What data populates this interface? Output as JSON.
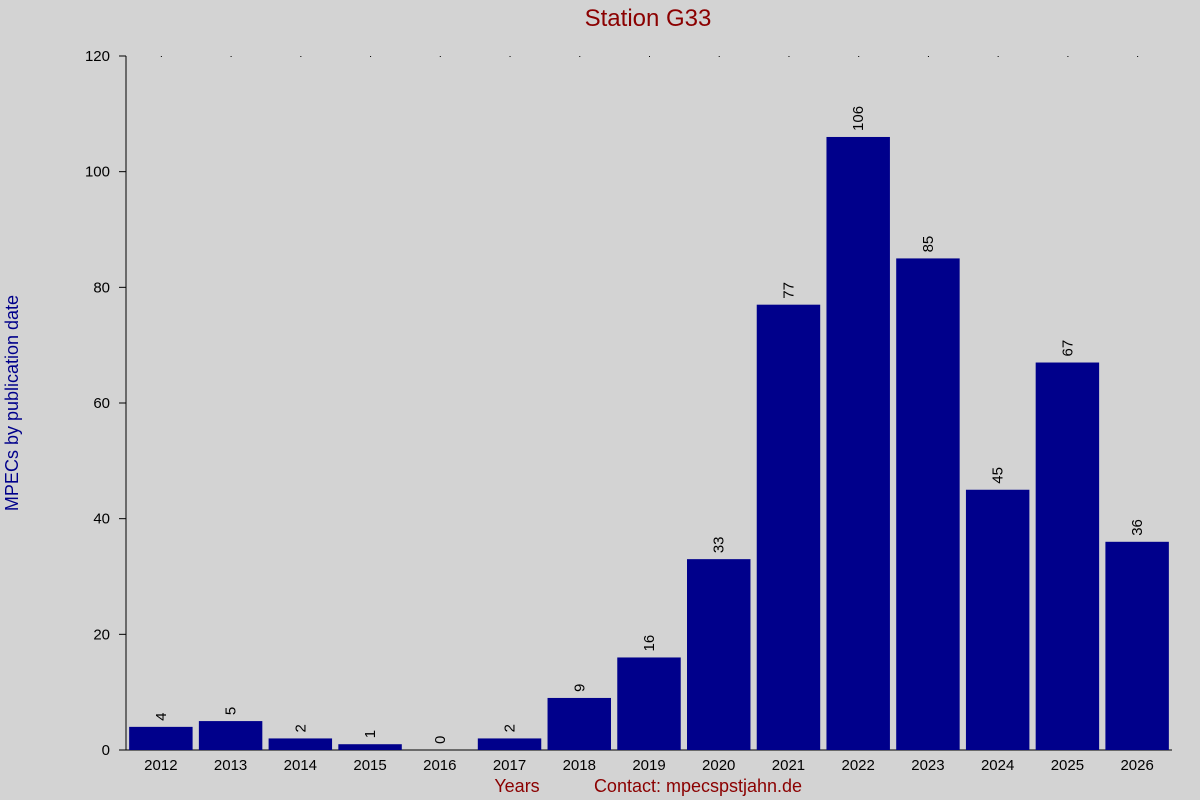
{
  "chart_data": {
    "type": "bar",
    "title": "Station G33",
    "ylabel": "MPECs by publication date",
    "xlabel": "Years",
    "contact": "Contact: mpecspstjahn.de",
    "categories": [
      "2012",
      "2013",
      "2014",
      "2015",
      "2016",
      "2017",
      "2018",
      "2019",
      "2020",
      "2021",
      "2022",
      "2023",
      "2024",
      "2025",
      "2026"
    ],
    "values": [
      4,
      5,
      2,
      1,
      0,
      2,
      9,
      16,
      33,
      77,
      106,
      85,
      45,
      67,
      36
    ],
    "ylim": [
      0,
      120
    ],
    "yticks": [
      "0",
      "20",
      "40",
      "60",
      "80",
      "100",
      "120"
    ],
    "data_labels": "rotated-vertical",
    "grid": false,
    "legend": "none",
    "colors": {
      "background": "#d3d3d3",
      "bar": "#00008b",
      "title": "#8b0000",
      "ylabel": "#00008b",
      "xlabel": "#8b0000",
      "axis": "#000000"
    }
  }
}
